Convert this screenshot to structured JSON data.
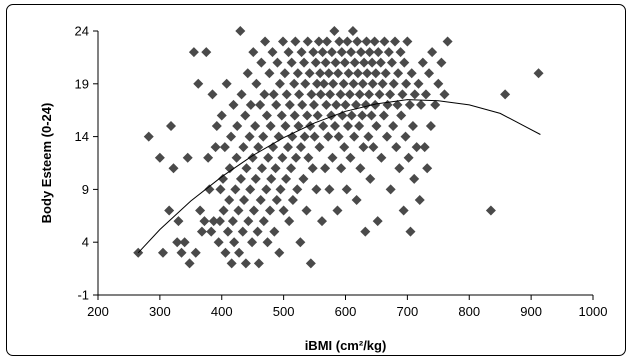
{
  "chart_data": {
    "type": "scatter",
    "xlabel": "iBMI (cm²/kg)",
    "ylabel": "Body Esteem (0-24)",
    "xlim": [
      200,
      1000
    ],
    "ylim": [
      -1,
      24
    ],
    "x_ticks": [
      200,
      300,
      400,
      500,
      600,
      700,
      800,
      900,
      1000
    ],
    "y_ticks": [
      -1,
      4,
      9,
      14,
      19,
      24
    ],
    "marker": "diamond",
    "marker_color": "#4a4a4a",
    "grid": false,
    "legend": "none",
    "trendline": {
      "type": "polynomial-2",
      "points": [
        [
          265,
          3.0
        ],
        [
          300,
          5.2
        ],
        [
          350,
          7.9
        ],
        [
          400,
          10.2
        ],
        [
          450,
          12.2
        ],
        [
          500,
          13.9
        ],
        [
          550,
          15.3
        ],
        [
          600,
          16.4
        ],
        [
          650,
          17.1
        ],
        [
          700,
          17.5
        ],
        [
          750,
          17.4
        ],
        [
          800,
          17.0
        ],
        [
          850,
          16.2
        ],
        [
          915,
          14.2
        ]
      ]
    },
    "points": [
      [
        265,
        3
      ],
      [
        282,
        14
      ],
      [
        300,
        12
      ],
      [
        305,
        3
      ],
      [
        315,
        7
      ],
      [
        318,
        15
      ],
      [
        322,
        11
      ],
      [
        328,
        4
      ],
      [
        330,
        6
      ],
      [
        335,
        3
      ],
      [
        340,
        4
      ],
      [
        345,
        12
      ],
      [
        348,
        2
      ],
      [
        355,
        22
      ],
      [
        358,
        3
      ],
      [
        362,
        19
      ],
      [
        365,
        7
      ],
      [
        368,
        5
      ],
      [
        372,
        6
      ],
      [
        375,
        22
      ],
      [
        378,
        12
      ],
      [
        380,
        9
      ],
      [
        383,
        5
      ],
      [
        385,
        18
      ],
      [
        387,
        6
      ],
      [
        390,
        13
      ],
      [
        392,
        15
      ],
      [
        395,
        4
      ],
      [
        397,
        6
      ],
      [
        398,
        9
      ],
      [
        400,
        16
      ],
      [
        402,
        10
      ],
      [
        403,
        7
      ],
      [
        405,
        13
      ],
      [
        406,
        3
      ],
      [
        408,
        19
      ],
      [
        410,
        5
      ],
      [
        412,
        8
      ],
      [
        413,
        11
      ],
      [
        415,
        14
      ],
      [
        416,
        2
      ],
      [
        418,
        6
      ],
      [
        419,
        17
      ],
      [
        420,
        4
      ],
      [
        422,
        9
      ],
      [
        424,
        12
      ],
      [
        425,
        15
      ],
      [
        427,
        7
      ],
      [
        428,
        3
      ],
      [
        430,
        24
      ],
      [
        431,
        10
      ],
      [
        432,
        18
      ],
      [
        434,
        5
      ],
      [
        435,
        13
      ],
      [
        436,
        8
      ],
      [
        438,
        16
      ],
      [
        439,
        2
      ],
      [
        440,
        11
      ],
      [
        442,
        20
      ],
      [
        443,
        6
      ],
      [
        445,
        14
      ],
      [
        446,
        9
      ],
      [
        447,
        17
      ],
      [
        449,
        4
      ],
      [
        450,
        12
      ],
      [
        451,
        22
      ],
      [
        452,
        7
      ],
      [
        454,
        15
      ],
      [
        455,
        10
      ],
      [
        456,
        19
      ],
      [
        458,
        5
      ],
      [
        459,
        13
      ],
      [
        460,
        2
      ],
      [
        462,
        17
      ],
      [
        463,
        8
      ],
      [
        464,
        21
      ],
      [
        465,
        11
      ],
      [
        467,
        14
      ],
      [
        468,
        6
      ],
      [
        469,
        18
      ],
      [
        470,
        23
      ],
      [
        472,
        9
      ],
      [
        473,
        16
      ],
      [
        474,
        4
      ],
      [
        475,
        12
      ],
      [
        477,
        20
      ],
      [
        478,
        7
      ],
      [
        479,
        15
      ],
      [
        480,
        10
      ],
      [
        482,
        22
      ],
      [
        483,
        13
      ],
      [
        484,
        18
      ],
      [
        485,
        5
      ],
      [
        487,
        11
      ],
      [
        488,
        17
      ],
      [
        489,
        8
      ],
      [
        490,
        21
      ],
      [
        492,
        14
      ],
      [
        493,
        3
      ],
      [
        494,
        19
      ],
      [
        495,
        9
      ],
      [
        497,
        16
      ],
      [
        498,
        12
      ],
      [
        499,
        23
      ],
      [
        500,
        7
      ],
      [
        502,
        20
      ],
      [
        503,
        15
      ],
      [
        504,
        10
      ],
      [
        505,
        18
      ],
      [
        507,
        13
      ],
      [
        508,
        22
      ],
      [
        509,
        6
      ],
      [
        510,
        17
      ],
      [
        512,
        11
      ],
      [
        513,
        21
      ],
      [
        514,
        14
      ],
      [
        515,
        8
      ],
      [
        517,
        19
      ],
      [
        518,
        16
      ],
      [
        519,
        23
      ],
      [
        520,
        12
      ],
      [
        522,
        9
      ],
      [
        523,
        20
      ],
      [
        524,
        15
      ],
      [
        525,
        18
      ],
      [
        527,
        4
      ],
      [
        528,
        13
      ],
      [
        529,
        22
      ],
      [
        530,
        17
      ],
      [
        532,
        10
      ],
      [
        533,
        21
      ],
      [
        534,
        14
      ],
      [
        535,
        19
      ],
      [
        537,
        7
      ],
      [
        538,
        16
      ],
      [
        539,
        23
      ],
      [
        540,
        12
      ],
      [
        542,
        20
      ],
      [
        543,
        15
      ],
      [
        544,
        2
      ],
      [
        545,
        18
      ],
      [
        547,
        11
      ],
      [
        548,
        22
      ],
      [
        549,
        17
      ],
      [
        550,
        14
      ],
      [
        552,
        21
      ],
      [
        553,
        9
      ],
      [
        554,
        19
      ],
      [
        555,
        16
      ],
      [
        557,
        23
      ],
      [
        558,
        13
      ],
      [
        559,
        20
      ],
      [
        560,
        18
      ],
      [
        562,
        6
      ],
      [
        563,
        22
      ],
      [
        564,
        15
      ],
      [
        565,
        19
      ],
      [
        567,
        11
      ],
      [
        568,
        21
      ],
      [
        569,
        17
      ],
      [
        570,
        23
      ],
      [
        572,
        14
      ],
      [
        573,
        20
      ],
      [
        574,
        9
      ],
      [
        575,
        18
      ],
      [
        577,
        16
      ],
      [
        578,
        22
      ],
      [
        579,
        12
      ],
      [
        580,
        19
      ],
      [
        582,
        24
      ],
      [
        583,
        15
      ],
      [
        584,
        21
      ],
      [
        585,
        17
      ],
      [
        587,
        7
      ],
      [
        588,
        20
      ],
      [
        589,
        14
      ],
      [
        590,
        23
      ],
      [
        592,
        18
      ],
      [
        593,
        11
      ],
      [
        594,
        22
      ],
      [
        595,
        16
      ],
      [
        597,
        19
      ],
      [
        598,
        13
      ],
      [
        599,
        21
      ],
      [
        600,
        17
      ],
      [
        602,
        9
      ],
      [
        603,
        23
      ],
      [
        604,
        15
      ],
      [
        605,
        20
      ],
      [
        607,
        18
      ],
      [
        608,
        12
      ],
      [
        609,
        22
      ],
      [
        610,
        16
      ],
      [
        612,
        24
      ],
      [
        613,
        19
      ],
      [
        614,
        14
      ],
      [
        615,
        21
      ],
      [
        617,
        17
      ],
      [
        618,
        8
      ],
      [
        619,
        23
      ],
      [
        620,
        20
      ],
      [
        622,
        15
      ],
      [
        623,
        18
      ],
      [
        624,
        11
      ],
      [
        625,
        22
      ],
      [
        627,
        16
      ],
      [
        628,
        19
      ],
      [
        629,
        13
      ],
      [
        630,
        21
      ],
      [
        632,
        5
      ],
      [
        633,
        17
      ],
      [
        634,
        23
      ],
      [
        635,
        20
      ],
      [
        637,
        14
      ],
      [
        638,
        18
      ],
      [
        639,
        22
      ],
      [
        640,
        10
      ],
      [
        642,
        16
      ],
      [
        643,
        21
      ],
      [
        644,
        19
      ],
      [
        645,
        13
      ],
      [
        647,
        23
      ],
      [
        648,
        17
      ],
      [
        649,
        20
      ],
      [
        650,
        15
      ],
      [
        652,
        6
      ],
      [
        653,
        22
      ],
      [
        655,
        18
      ],
      [
        657,
        21
      ],
      [
        658,
        12
      ],
      [
        660,
        19
      ],
      [
        662,
        16
      ],
      [
        663,
        23
      ],
      [
        665,
        20
      ],
      [
        667,
        14
      ],
      [
        668,
        17
      ],
      [
        670,
        22
      ],
      [
        672,
        18
      ],
      [
        673,
        9
      ],
      [
        675,
        21
      ],
      [
        677,
        15
      ],
      [
        678,
        19
      ],
      [
        680,
        23
      ],
      [
        682,
        13
      ],
      [
        684,
        17
      ],
      [
        685,
        20
      ],
      [
        687,
        11
      ],
      [
        689,
        22
      ],
      [
        690,
        16
      ],
      [
        692,
        18
      ],
      [
        694,
        7
      ],
      [
        695,
        21
      ],
      [
        697,
        14
      ],
      [
        698,
        19
      ],
      [
        700,
        23
      ],
      [
        702,
        12
      ],
      [
        704,
        17
      ],
      [
        705,
        5
      ],
      [
        707,
        20
      ],
      [
        709,
        15
      ],
      [
        711,
        10
      ],
      [
        712,
        18
      ],
      [
        715,
        13
      ],
      [
        718,
        19
      ],
      [
        720,
        8
      ],
      [
        722,
        17
      ],
      [
        725,
        21
      ],
      [
        728,
        13
      ],
      [
        730,
        18
      ],
      [
        732,
        11
      ],
      [
        735,
        20
      ],
      [
        738,
        15
      ],
      [
        740,
        22
      ],
      [
        745,
        17
      ],
      [
        750,
        19
      ],
      [
        755,
        21
      ],
      [
        760,
        18
      ],
      [
        765,
        23
      ],
      [
        835,
        7
      ],
      [
        858,
        18
      ],
      [
        912,
        20
      ]
    ]
  }
}
